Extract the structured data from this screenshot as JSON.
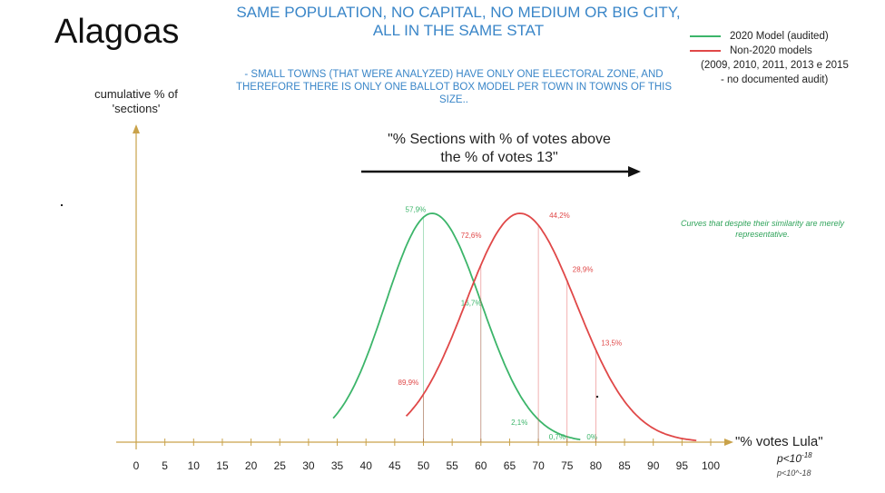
{
  "title": "Alagoas",
  "headline": "SAME POPULATION, NO CAPITAL, NO MEDIUM OR BIG CITY, ALL IN THE SAME STAT",
  "note": "- SMALL TOWNS (THAT WERE ANALYZED) HAVE ONLY ONE ELECTORAL ZONE, AND THEREFORE THERE IS ONLY ONE BALLOT BOX MODEL PER TOWN IN TOWNS OF THIS SIZE..",
  "arrow_text": "\"% Sections with % of votes above the % of votes 13\"",
  "curve_note": "Curves that despite their similarity are merely representative.",
  "p_value": "p<10^-18",
  "p_value_base": "p<10",
  "p_value_exp": "-18",
  "chart_data": {
    "type": "line",
    "ylabel": "cumulative % of 'sections'",
    "xlabel": "\"% votes Lula\"",
    "xlim": [
      0,
      100
    ],
    "xticks": [
      0,
      5,
      10,
      15,
      20,
      25,
      30,
      35,
      40,
      45,
      50,
      55,
      60,
      65,
      70,
      75,
      80,
      85,
      90,
      95,
      100
    ],
    "series": [
      {
        "name": "2020 Model (audited)",
        "color": "#3cb56a",
        "curve": {
          "mean": 51.5,
          "sd_left": 8.1,
          "sd_right": 8.6,
          "range": [
            34.3,
            77.5
          ]
        },
        "points": [
          {
            "x": 50,
            "label": "57,9%"
          },
          {
            "x": 60,
            "label": "16,7%"
          },
          {
            "x": 70,
            "label": "2,1%"
          },
          {
            "x": 75,
            "label": "0,7%"
          },
          {
            "x": 80,
            "label": "0%"
          }
        ]
      },
      {
        "name": "Non-2020 models",
        "name_detail": "(2009, 2010, 2011, 2013 e 2015",
        "name_detail2": "- no documented audit)",
        "color": "#e04848",
        "curve": {
          "mean": 66.8,
          "sd_left": 9.5,
          "sd_right": 9.8,
          "range": [
            47,
            97.5
          ]
        },
        "points": [
          {
            "x": 50,
            "label": "89,9%"
          },
          {
            "x": 60,
            "label": "72,6%"
          },
          {
            "x": 70,
            "label": "44,2%"
          },
          {
            "x": 75,
            "label": "28,9%"
          },
          {
            "x": 80,
            "label": "13,5%"
          }
        ]
      }
    ]
  }
}
